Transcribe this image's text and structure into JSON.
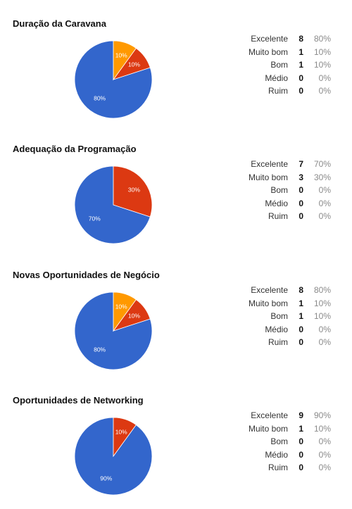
{
  "colors": {
    "excelente": "#3366cc",
    "muito_bom": "#dc3912",
    "bom": "#ff9900"
  },
  "chart_data": [
    {
      "type": "pie",
      "title": "Duração da Caravana",
      "categories": [
        "Excelente",
        "Muito bom",
        "Bom",
        "Médio",
        "Ruim"
      ],
      "counts": [
        8,
        1,
        1,
        0,
        0
      ],
      "percent_labels": [
        "80%",
        "10%",
        "10%",
        "0%",
        "0%"
      ]
    },
    {
      "type": "pie",
      "title": "Adequação da Programação",
      "categories": [
        "Excelente",
        "Muito bom",
        "Bom",
        "Médio",
        "Ruim"
      ],
      "counts": [
        7,
        3,
        0,
        0,
        0
      ],
      "percent_labels": [
        "70%",
        "30%",
        "0%",
        "0%",
        "0%"
      ]
    },
    {
      "type": "pie",
      "title": "Novas Oportunidades de Negócio",
      "categories": [
        "Excelente",
        "Muito bom",
        "Bom",
        "Médio",
        "Ruim"
      ],
      "counts": [
        8,
        1,
        1,
        0,
        0
      ],
      "percent_labels": [
        "80%",
        "10%",
        "10%",
        "0%",
        "0%"
      ]
    },
    {
      "type": "pie",
      "title": "Oportunidades de Networking",
      "categories": [
        "Excelente",
        "Muito bom",
        "Bom",
        "Médio",
        "Ruim"
      ],
      "counts": [
        9,
        1,
        0,
        0,
        0
      ],
      "percent_labels": [
        "90%",
        "10%",
        "0%",
        "0%",
        "0%"
      ]
    }
  ]
}
